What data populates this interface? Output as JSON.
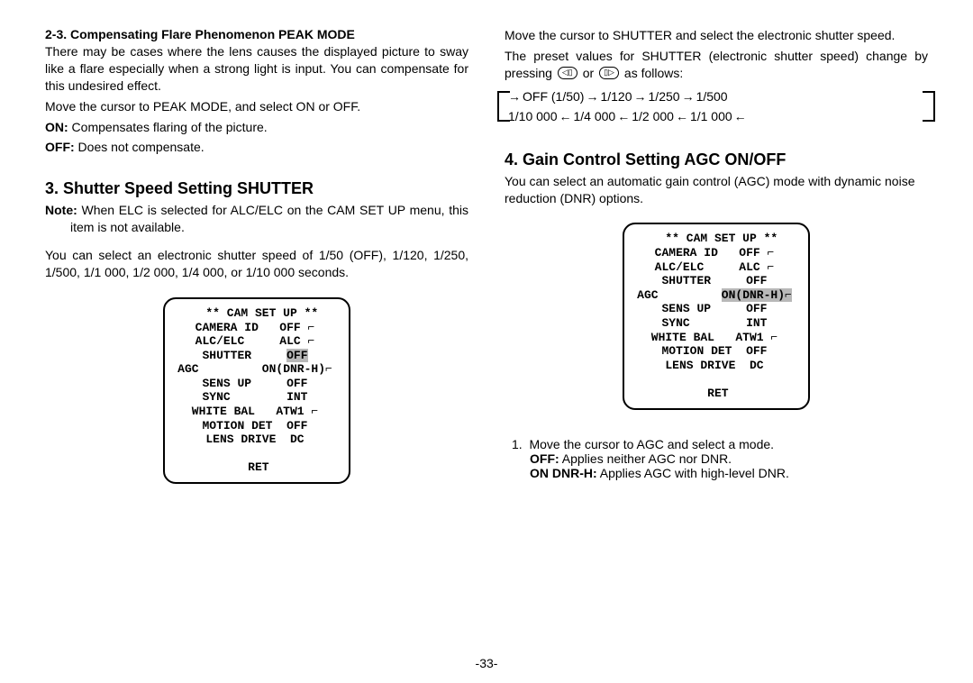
{
  "left": {
    "sec23_heading": "2-3. Compensating Flare Phenomenon PEAK MODE",
    "sec23_p1": "There may be cases where the lens causes the displayed picture to sway like a flare especially when a strong light is input. You can compensate for this undesired effect.",
    "sec23_p2": "Move the cursor to PEAK MODE, and select ON or OFF.",
    "sec23_on_label": "ON:",
    "sec23_on_text": " Compensates flaring of the picture.",
    "sec23_off_label": "OFF:",
    "sec23_off_text": " Does not compensate.",
    "sec3_heading": "3. Shutter Speed Setting SHUTTER",
    "sec3_note_label": "Note:",
    "sec3_note_text": " When ELC is selected for ALC/ELC on the CAM SET UP menu, this item is not available.",
    "sec3_p1": "You can select an electronic shutter speed of 1/50 (OFF), 1/120, 1/250, 1/500, 1/1 000, 1/2 000, 1/4 000, or 1/10 000 seconds.",
    "menu": {
      "title": "  ** CAM SET UP **",
      "rows": [
        [
          "CAMERA ID",
          "OFF ⌐"
        ],
        [
          "ALC/ELC",
          "ALC ⌐"
        ],
        [
          "SHUTTER",
          "OFF"
        ],
        [
          "AGC",
          "ON(DNR-H)⌐"
        ],
        [
          "SENS UP",
          "OFF"
        ],
        [
          "SYNC",
          "INT"
        ],
        [
          "WHITE BAL",
          "ATW1 ⌐"
        ],
        [
          "MOTION DET",
          "OFF"
        ],
        [
          "LENS DRIVE",
          "DC"
        ]
      ],
      "ret": " RET",
      "highlight_row": 2,
      "highlight_col": 1
    }
  },
  "right": {
    "p1": "Move the cursor to SHUTTER and select the electronic shutter speed.",
    "p2a": "The preset values for SHUTTER (electronic shutter speed) change by pressing ",
    "p2b": " or ",
    "p2c": " as follows:",
    "icon_left": "◁▯",
    "icon_right": "▯▷",
    "cycle_top": [
      "OFF (1/50)",
      "1/120",
      "1/250",
      "1/500"
    ],
    "cycle_bottom": [
      "1/10 000",
      "1/4 000",
      "1/2 000",
      "1/1 000"
    ],
    "sec4_heading": "4. Gain Control Setting AGC ON/OFF",
    "sec4_p1": "You can select an automatic gain control (AGC) mode with dynamic noise reduction (DNR) options.",
    "menu": {
      "title": "  ** CAM SET UP **",
      "rows": [
        [
          "CAMERA ID",
          "OFF ⌐"
        ],
        [
          "ALC/ELC",
          "ALC ⌐"
        ],
        [
          "SHUTTER",
          "OFF"
        ],
        [
          "AGC",
          "ON(DNR-H)⌐"
        ],
        [
          "SENS UP",
          "OFF"
        ],
        [
          "SYNC",
          "INT"
        ],
        [
          "WHITE BAL",
          "ATW1 ⌐"
        ],
        [
          "MOTION DET",
          "OFF"
        ],
        [
          "LENS DRIVE",
          "DC"
        ]
      ],
      "ret": " RET",
      "highlight_row": 3,
      "highlight_col": 1
    },
    "list1_num": "1.",
    "list1_text": "Move the cursor to AGC and select a mode.",
    "list1_off_label": "OFF:",
    "list1_off_text": " Applies neither AGC nor DNR.",
    "list1_on_label": "ON DNR-H:",
    "list1_on_text": " Applies AGC with high-level DNR."
  },
  "page_num": "-33-"
}
